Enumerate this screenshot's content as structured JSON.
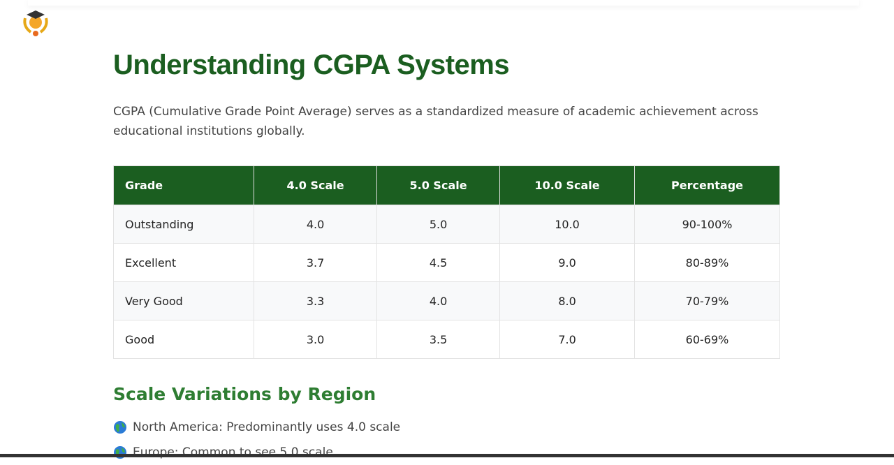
{
  "header": {
    "title": "Understanding CGPA Systems",
    "intro": "CGPA (Cumulative Grade Point Average) serves as a standardized measure of academic achievement across educational institutions globally."
  },
  "table": {
    "columns": [
      "Grade",
      "4.0 Scale",
      "5.0 Scale",
      "10.0 Scale",
      "Percentage"
    ],
    "rows": [
      [
        "Outstanding",
        "4.0",
        "5.0",
        "10.0",
        "90-100%"
      ],
      [
        "Excellent",
        "3.7",
        "4.5",
        "9.0",
        "80-89%"
      ],
      [
        "Very Good",
        "3.3",
        "4.0",
        "8.0",
        "70-79%"
      ],
      [
        "Good",
        "3.0",
        "3.5",
        "7.0",
        "60-69%"
      ]
    ]
  },
  "section": {
    "title": "Scale Variations by Region",
    "items": [
      "North America: Predominantly uses 4.0 scale",
      "Europe: Common to see 5.0 scale"
    ]
  }
}
